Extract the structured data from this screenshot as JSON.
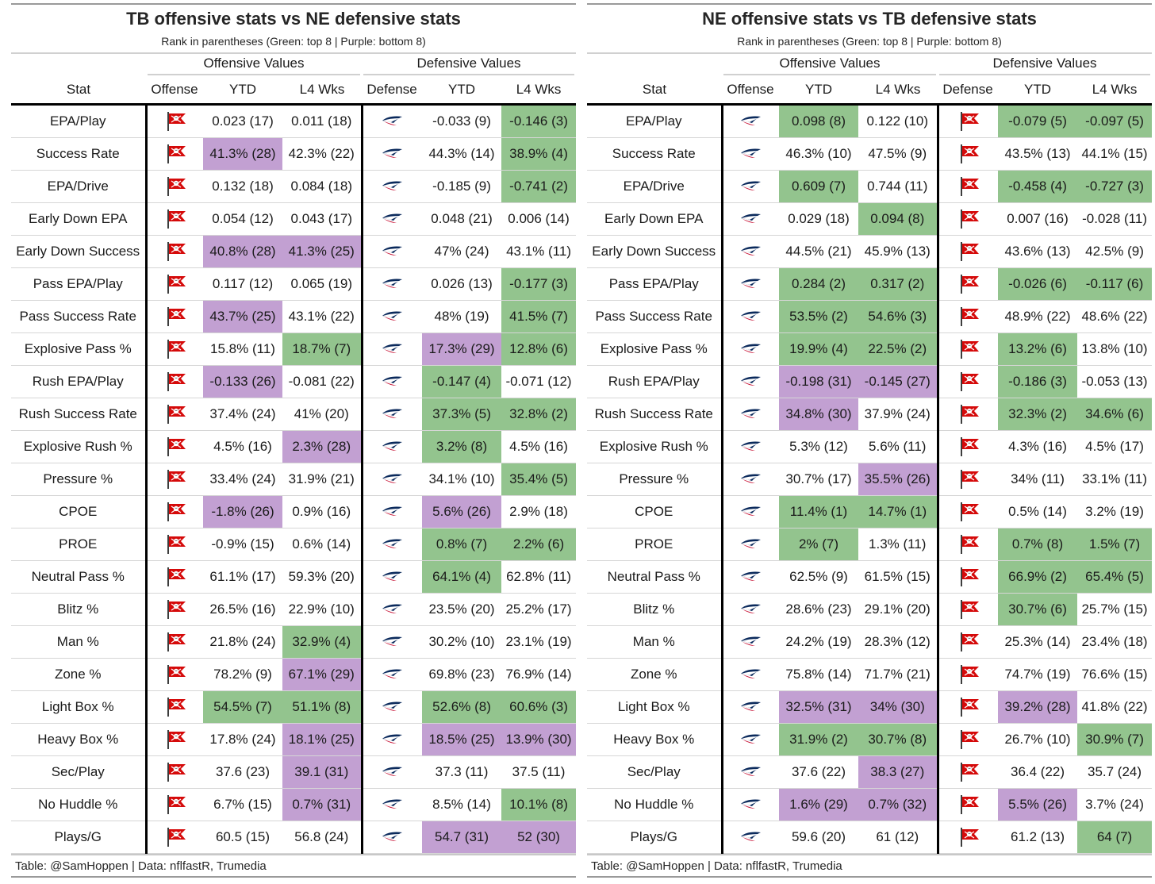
{
  "colors": {
    "green": "#93c48e",
    "purple": "#c2a0d2"
  },
  "panels": [
    {
      "title": "TB offensive stats vs NE defensive stats",
      "subtitle": "Rank in parentheses (Green: top 8 | Purple: bottom 8)",
      "group_off": "Offensive Values",
      "group_def": "Defensive Values",
      "col_stat": "Stat",
      "col_offense": "Offense",
      "col_defense": "Defense",
      "col_ytd": "YTD",
      "col_l4": "L4 Wks",
      "offense_logo": "buccaneers-flag-icon",
      "defense_logo": "patriots-logo-icon",
      "footer": "Table: @SamHoppen | Data: nflfastR, Trumedia",
      "rows": [
        {
          "stat": "EPA/Play",
          "o_ytd": "0.023 (17)",
          "o_ytd_c": "",
          "o_l4": "0.011 (18)",
          "o_l4_c": "",
          "d_ytd": "-0.033 (9)",
          "d_ytd_c": "",
          "d_l4": "-0.146 (3)",
          "d_l4_c": "green"
        },
        {
          "stat": "Success Rate",
          "o_ytd": "41.3% (28)",
          "o_ytd_c": "purple",
          "o_l4": "42.3% (22)",
          "o_l4_c": "",
          "d_ytd": "44.3% (14)",
          "d_ytd_c": "",
          "d_l4": "38.9% (4)",
          "d_l4_c": "green"
        },
        {
          "stat": "EPA/Drive",
          "o_ytd": "0.132 (18)",
          "o_ytd_c": "",
          "o_l4": "0.084 (18)",
          "o_l4_c": "",
          "d_ytd": "-0.185 (9)",
          "d_ytd_c": "",
          "d_l4": "-0.741 (2)",
          "d_l4_c": "green"
        },
        {
          "stat": "Early Down EPA",
          "o_ytd": "0.054 (12)",
          "o_ytd_c": "",
          "o_l4": "0.043 (17)",
          "o_l4_c": "",
          "d_ytd": "0.048 (21)",
          "d_ytd_c": "",
          "d_l4": "0.006 (14)",
          "d_l4_c": ""
        },
        {
          "stat": "Early Down Success",
          "o_ytd": "40.8% (28)",
          "o_ytd_c": "purple",
          "o_l4": "41.3% (25)",
          "o_l4_c": "purple",
          "d_ytd": "47% (24)",
          "d_ytd_c": "",
          "d_l4": "43.1% (11)",
          "d_l4_c": ""
        },
        {
          "stat": "Pass EPA/Play",
          "o_ytd": "0.117 (12)",
          "o_ytd_c": "",
          "o_l4": "0.065 (19)",
          "o_l4_c": "",
          "d_ytd": "0.026 (13)",
          "d_ytd_c": "",
          "d_l4": "-0.177 (3)",
          "d_l4_c": "green"
        },
        {
          "stat": "Pass Success Rate",
          "o_ytd": "43.7% (25)",
          "o_ytd_c": "purple",
          "o_l4": "43.1% (22)",
          "o_l4_c": "",
          "d_ytd": "48% (19)",
          "d_ytd_c": "",
          "d_l4": "41.5% (7)",
          "d_l4_c": "green"
        },
        {
          "stat": "Explosive Pass %",
          "o_ytd": "15.8% (11)",
          "o_ytd_c": "",
          "o_l4": "18.7% (7)",
          "o_l4_c": "green",
          "d_ytd": "17.3% (29)",
          "d_ytd_c": "purple",
          "d_l4": "12.8% (6)",
          "d_l4_c": "green"
        },
        {
          "stat": "Rush EPA/Play",
          "o_ytd": "-0.133 (26)",
          "o_ytd_c": "purple",
          "o_l4": "-0.081 (22)",
          "o_l4_c": "",
          "d_ytd": "-0.147 (4)",
          "d_ytd_c": "green",
          "d_l4": "-0.071 (12)",
          "d_l4_c": ""
        },
        {
          "stat": "Rush Success Rate",
          "o_ytd": "37.4% (24)",
          "o_ytd_c": "",
          "o_l4": "41% (20)",
          "o_l4_c": "",
          "d_ytd": "37.3% (5)",
          "d_ytd_c": "green",
          "d_l4": "32.8% (2)",
          "d_l4_c": "green"
        },
        {
          "stat": "Explosive Rush %",
          "o_ytd": "4.5% (16)",
          "o_ytd_c": "",
          "o_l4": "2.3% (28)",
          "o_l4_c": "purple",
          "d_ytd": "3.2% (8)",
          "d_ytd_c": "green",
          "d_l4": "4.5% (16)",
          "d_l4_c": ""
        },
        {
          "stat": "Pressure %",
          "o_ytd": "33.4% (24)",
          "o_ytd_c": "",
          "o_l4": "31.9% (21)",
          "o_l4_c": "",
          "d_ytd": "34.1% (10)",
          "d_ytd_c": "",
          "d_l4": "35.4% (5)",
          "d_l4_c": "green"
        },
        {
          "stat": "CPOE",
          "o_ytd": "-1.8% (26)",
          "o_ytd_c": "purple",
          "o_l4": "0.9% (16)",
          "o_l4_c": "",
          "d_ytd": "5.6% (26)",
          "d_ytd_c": "purple",
          "d_l4": "2.9% (18)",
          "d_l4_c": ""
        },
        {
          "stat": "PROE",
          "o_ytd": "-0.9% (15)",
          "o_ytd_c": "",
          "o_l4": "0.6% (14)",
          "o_l4_c": "",
          "d_ytd": "0.8% (7)",
          "d_ytd_c": "green",
          "d_l4": "2.2% (6)",
          "d_l4_c": "green"
        },
        {
          "stat": "Neutral Pass %",
          "o_ytd": "61.1% (17)",
          "o_ytd_c": "",
          "o_l4": "59.3% (20)",
          "o_l4_c": "",
          "d_ytd": "64.1% (4)",
          "d_ytd_c": "green",
          "d_l4": "62.8% (11)",
          "d_l4_c": ""
        },
        {
          "stat": "Blitz %",
          "o_ytd": "26.5% (16)",
          "o_ytd_c": "",
          "o_l4": "22.9% (10)",
          "o_l4_c": "",
          "d_ytd": "23.5% (20)",
          "d_ytd_c": "",
          "d_l4": "25.2% (17)",
          "d_l4_c": ""
        },
        {
          "stat": "Man %",
          "o_ytd": "21.8% (24)",
          "o_ytd_c": "",
          "o_l4": "32.9% (4)",
          "o_l4_c": "green",
          "d_ytd": "30.2% (10)",
          "d_ytd_c": "",
          "d_l4": "23.1% (19)",
          "d_l4_c": ""
        },
        {
          "stat": "Zone %",
          "o_ytd": "78.2% (9)",
          "o_ytd_c": "",
          "o_l4": "67.1% (29)",
          "o_l4_c": "purple",
          "d_ytd": "69.8% (23)",
          "d_ytd_c": "",
          "d_l4": "76.9% (14)",
          "d_l4_c": ""
        },
        {
          "stat": "Light Box %",
          "o_ytd": "54.5% (7)",
          "o_ytd_c": "green",
          "o_l4": "51.1% (8)",
          "o_l4_c": "green",
          "d_ytd": "52.6% (8)",
          "d_ytd_c": "green",
          "d_l4": "60.6% (3)",
          "d_l4_c": "green"
        },
        {
          "stat": "Heavy Box %",
          "o_ytd": "17.8% (24)",
          "o_ytd_c": "",
          "o_l4": "18.1% (25)",
          "o_l4_c": "purple",
          "d_ytd": "18.5% (25)",
          "d_ytd_c": "purple",
          "d_l4": "13.9% (30)",
          "d_l4_c": "purple"
        },
        {
          "stat": "Sec/Play",
          "o_ytd": "37.6 (23)",
          "o_ytd_c": "",
          "o_l4": "39.1 (31)",
          "o_l4_c": "purple",
          "d_ytd": "37.3 (11)",
          "d_ytd_c": "",
          "d_l4": "37.5 (11)",
          "d_l4_c": ""
        },
        {
          "stat": "No Huddle %",
          "o_ytd": "6.7% (15)",
          "o_ytd_c": "",
          "o_l4": "0.7% (31)",
          "o_l4_c": "purple",
          "d_ytd": "8.5% (14)",
          "d_ytd_c": "",
          "d_l4": "10.1% (8)",
          "d_l4_c": "green"
        },
        {
          "stat": "Plays/G",
          "o_ytd": "60.5 (15)",
          "o_ytd_c": "",
          "o_l4": "56.8 (24)",
          "o_l4_c": "",
          "d_ytd": "54.7 (31)",
          "d_ytd_c": "purple",
          "d_l4": "52 (30)",
          "d_l4_c": "purple"
        }
      ]
    },
    {
      "title": "NE offensive stats vs TB defensive stats",
      "subtitle": "Rank in parentheses (Green: top 8 | Purple: bottom 8)",
      "group_off": "Offensive Values",
      "group_def": "Defensive Values",
      "col_stat": "Stat",
      "col_offense": "Offense",
      "col_defense": "Defense",
      "col_ytd": "YTD",
      "col_l4": "L4 Wks",
      "offense_logo": "patriots-logo-icon",
      "defense_logo": "buccaneers-flag-icon",
      "footer": "Table: @SamHoppen | Data: nflfastR, Trumedia",
      "rows": [
        {
          "stat": "EPA/Play",
          "o_ytd": "0.098 (8)",
          "o_ytd_c": "green",
          "o_l4": "0.122 (10)",
          "o_l4_c": "",
          "d_ytd": "-0.079 (5)",
          "d_ytd_c": "green",
          "d_l4": "-0.097 (5)",
          "d_l4_c": "green"
        },
        {
          "stat": "Success Rate",
          "o_ytd": "46.3% (10)",
          "o_ytd_c": "",
          "o_l4": "47.5% (9)",
          "o_l4_c": "",
          "d_ytd": "43.5% (13)",
          "d_ytd_c": "",
          "d_l4": "44.1% (15)",
          "d_l4_c": ""
        },
        {
          "stat": "EPA/Drive",
          "o_ytd": "0.609 (7)",
          "o_ytd_c": "green",
          "o_l4": "0.744 (11)",
          "o_l4_c": "",
          "d_ytd": "-0.458 (4)",
          "d_ytd_c": "green",
          "d_l4": "-0.727 (3)",
          "d_l4_c": "green"
        },
        {
          "stat": "Early Down EPA",
          "o_ytd": "0.029 (18)",
          "o_ytd_c": "",
          "o_l4": "0.094 (8)",
          "o_l4_c": "green",
          "d_ytd": "0.007 (16)",
          "d_ytd_c": "",
          "d_l4": "-0.028 (11)",
          "d_l4_c": ""
        },
        {
          "stat": "Early Down Success",
          "o_ytd": "44.5% (21)",
          "o_ytd_c": "",
          "o_l4": "45.9% (13)",
          "o_l4_c": "",
          "d_ytd": "43.6% (13)",
          "d_ytd_c": "",
          "d_l4": "42.5% (9)",
          "d_l4_c": ""
        },
        {
          "stat": "Pass EPA/Play",
          "o_ytd": "0.284 (2)",
          "o_ytd_c": "green",
          "o_l4": "0.317 (2)",
          "o_l4_c": "green",
          "d_ytd": "-0.026 (6)",
          "d_ytd_c": "green",
          "d_l4": "-0.117 (6)",
          "d_l4_c": "green"
        },
        {
          "stat": "Pass Success Rate",
          "o_ytd": "53.5% (2)",
          "o_ytd_c": "green",
          "o_l4": "54.6% (3)",
          "o_l4_c": "green",
          "d_ytd": "48.9% (22)",
          "d_ytd_c": "",
          "d_l4": "48.6% (22)",
          "d_l4_c": ""
        },
        {
          "stat": "Explosive Pass %",
          "o_ytd": "19.9% (4)",
          "o_ytd_c": "green",
          "o_l4": "22.5% (2)",
          "o_l4_c": "green",
          "d_ytd": "13.2% (6)",
          "d_ytd_c": "green",
          "d_l4": "13.8% (10)",
          "d_l4_c": ""
        },
        {
          "stat": "Rush EPA/Play",
          "o_ytd": "-0.198 (31)",
          "o_ytd_c": "purple",
          "o_l4": "-0.145 (27)",
          "o_l4_c": "purple",
          "d_ytd": "-0.186 (3)",
          "d_ytd_c": "green",
          "d_l4": "-0.053 (13)",
          "d_l4_c": ""
        },
        {
          "stat": "Rush Success Rate",
          "o_ytd": "34.8% (30)",
          "o_ytd_c": "purple",
          "o_l4": "37.9% (24)",
          "o_l4_c": "",
          "d_ytd": "32.3% (2)",
          "d_ytd_c": "green",
          "d_l4": "34.6% (6)",
          "d_l4_c": "green"
        },
        {
          "stat": "Explosive Rush %",
          "o_ytd": "5.3% (12)",
          "o_ytd_c": "",
          "o_l4": "5.6% (11)",
          "o_l4_c": "",
          "d_ytd": "4.3% (16)",
          "d_ytd_c": "",
          "d_l4": "4.5% (17)",
          "d_l4_c": ""
        },
        {
          "stat": "Pressure %",
          "o_ytd": "30.7% (17)",
          "o_ytd_c": "",
          "o_l4": "35.5% (26)",
          "o_l4_c": "purple",
          "d_ytd": "34% (11)",
          "d_ytd_c": "",
          "d_l4": "33.1% (11)",
          "d_l4_c": ""
        },
        {
          "stat": "CPOE",
          "o_ytd": "11.4% (1)",
          "o_ytd_c": "green",
          "o_l4": "14.7% (1)",
          "o_l4_c": "green",
          "d_ytd": "0.5% (14)",
          "d_ytd_c": "",
          "d_l4": "3.2% (19)",
          "d_l4_c": ""
        },
        {
          "stat": "PROE",
          "o_ytd": "2% (7)",
          "o_ytd_c": "green",
          "o_l4": "1.3% (11)",
          "o_l4_c": "",
          "d_ytd": "0.7% (8)",
          "d_ytd_c": "green",
          "d_l4": "1.5% (7)",
          "d_l4_c": "green"
        },
        {
          "stat": "Neutral Pass %",
          "o_ytd": "62.5% (9)",
          "o_ytd_c": "",
          "o_l4": "61.5% (15)",
          "o_l4_c": "",
          "d_ytd": "66.9% (2)",
          "d_ytd_c": "green",
          "d_l4": "65.4% (5)",
          "d_l4_c": "green"
        },
        {
          "stat": "Blitz %",
          "o_ytd": "28.6% (23)",
          "o_ytd_c": "",
          "o_l4": "29.1% (20)",
          "o_l4_c": "",
          "d_ytd": "30.7% (6)",
          "d_ytd_c": "green",
          "d_l4": "25.7% (15)",
          "d_l4_c": ""
        },
        {
          "stat": "Man %",
          "o_ytd": "24.2% (19)",
          "o_ytd_c": "",
          "o_l4": "28.3% (12)",
          "o_l4_c": "",
          "d_ytd": "25.3% (14)",
          "d_ytd_c": "",
          "d_l4": "23.4% (18)",
          "d_l4_c": ""
        },
        {
          "stat": "Zone %",
          "o_ytd": "75.8% (14)",
          "o_ytd_c": "",
          "o_l4": "71.7% (21)",
          "o_l4_c": "",
          "d_ytd": "74.7% (19)",
          "d_ytd_c": "",
          "d_l4": "76.6% (15)",
          "d_l4_c": ""
        },
        {
          "stat": "Light Box %",
          "o_ytd": "32.5% (31)",
          "o_ytd_c": "purple",
          "o_l4": "34% (30)",
          "o_l4_c": "purple",
          "d_ytd": "39.2% (28)",
          "d_ytd_c": "purple",
          "d_l4": "41.8% (22)",
          "d_l4_c": ""
        },
        {
          "stat": "Heavy Box %",
          "o_ytd": "31.9% (2)",
          "o_ytd_c": "green",
          "o_l4": "30.7% (8)",
          "o_l4_c": "green",
          "d_ytd": "26.7% (10)",
          "d_ytd_c": "",
          "d_l4": "30.9% (7)",
          "d_l4_c": "green"
        },
        {
          "stat": "Sec/Play",
          "o_ytd": "37.6 (22)",
          "o_ytd_c": "",
          "o_l4": "38.3 (27)",
          "o_l4_c": "purple",
          "d_ytd": "36.4 (22)",
          "d_ytd_c": "",
          "d_l4": "35.7 (24)",
          "d_l4_c": ""
        },
        {
          "stat": "No Huddle %",
          "o_ytd": "1.6% (29)",
          "o_ytd_c": "purple",
          "o_l4": "0.7% (32)",
          "o_l4_c": "purple",
          "d_ytd": "5.5% (26)",
          "d_ytd_c": "purple",
          "d_l4": "3.7% (24)",
          "d_l4_c": ""
        },
        {
          "stat": "Plays/G",
          "o_ytd": "59.6 (20)",
          "o_ytd_c": "",
          "o_l4": "61 (12)",
          "o_l4_c": "",
          "d_ytd": "61.2 (13)",
          "d_ytd_c": "",
          "d_l4": "64 (7)",
          "d_l4_c": "green"
        }
      ]
    }
  ]
}
